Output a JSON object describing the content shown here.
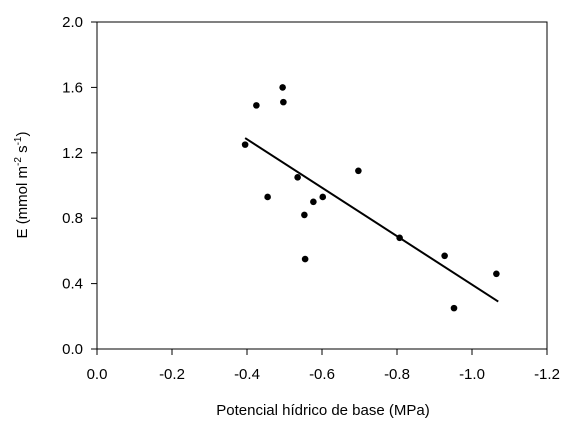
{
  "chart_data": {
    "type": "scatter",
    "xlabel": "Potencial hídrico de base (MPa)",
    "ylabel": {
      "prefix": "E (mmol m",
      "sup1": "-2",
      "middle": " s",
      "sup2": "-1",
      "suffix": ")"
    },
    "xlim": [
      0.0,
      -1.2
    ],
    "ylim": [
      0.0,
      2.0
    ],
    "xticks": [
      "0.0",
      "-0.2",
      "-0.4",
      "-0.6",
      "-0.8",
      "-1.0",
      "-1.2"
    ],
    "yticks": [
      "0.0",
      "0.4",
      "0.8",
      "1.2",
      "1.6",
      "2.0"
    ],
    "series": [
      {
        "points": [
          {
            "x": -0.395,
            "y": 1.25
          },
          {
            "x": -0.425,
            "y": 1.49
          },
          {
            "x": -0.455,
            "y": 0.93
          },
          {
            "x": -0.495,
            "y": 1.6
          },
          {
            "x": -0.497,
            "y": 1.51
          },
          {
            "x": -0.535,
            "y": 1.05
          },
          {
            "x": -0.553,
            "y": 0.82
          },
          {
            "x": -0.555,
            "y": 0.55
          },
          {
            "x": -0.577,
            "y": 0.9
          },
          {
            "x": -0.602,
            "y": 0.93
          },
          {
            "x": -0.697,
            "y": 1.09
          },
          {
            "x": -0.807,
            "y": 0.68
          },
          {
            "x": -0.927,
            "y": 0.57
          },
          {
            "x": -0.952,
            "y": 0.25
          },
          {
            "x": -1.065,
            "y": 0.46
          }
        ]
      }
    ],
    "trendline": {
      "x": [
        -0.395,
        -1.07
      ],
      "y": [
        1.29,
        0.29
      ]
    },
    "grid": false,
    "legend": "none"
  }
}
